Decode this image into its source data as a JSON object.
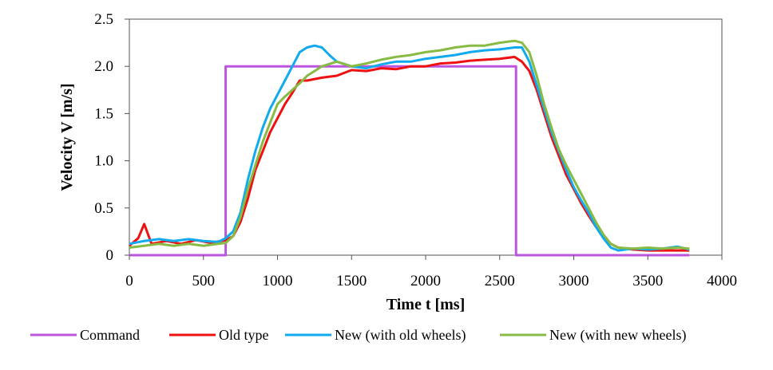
{
  "chart_data": {
    "type": "line",
    "title": "",
    "xlabel": "Time t [ms]",
    "ylabel": "Velocity V [m/s]",
    "xlim": [
      0,
      4000
    ],
    "ylim": [
      0,
      2.5
    ],
    "xticks": [
      0,
      500,
      1000,
      1500,
      2000,
      2500,
      3000,
      3500,
      4000
    ],
    "yticks": [
      0,
      0.5,
      1.0,
      1.5,
      2.0,
      2.5
    ],
    "xtick_labels": [
      "0",
      "500",
      "1000",
      "1500",
      "2000",
      "2500",
      "3000",
      "3500",
      "4000"
    ],
    "ytick_labels": [
      "0",
      "0.5",
      "1.0",
      "1.5",
      "2.0",
      "2.5"
    ],
    "grid": false,
    "legend_position": "bottom",
    "series": [
      {
        "name": "Command",
        "color": "#bb55dd",
        "x": [
          0,
          650,
          650,
          2610,
          2610,
          3780
        ],
        "y": [
          0,
          0,
          2.0,
          2.0,
          0,
          0
        ]
      },
      {
        "name": "Old type",
        "color": "#ee1111",
        "x": [
          0,
          60,
          100,
          150,
          250,
          350,
          450,
          550,
          650,
          700,
          750,
          800,
          850,
          900,
          950,
          1000,
          1050,
          1100,
          1150,
          1200,
          1300,
          1400,
          1500,
          1600,
          1700,
          1800,
          1900,
          2000,
          2100,
          2200,
          2300,
          2400,
          2500,
          2600,
          2650,
          2700,
          2750,
          2800,
          2850,
          2900,
          2950,
          3000,
          3050,
          3100,
          3150,
          3200,
          3250,
          3300,
          3400,
          3500,
          3600,
          3700,
          3780
        ],
        "y": [
          0.1,
          0.18,
          0.33,
          0.12,
          0.15,
          0.12,
          0.16,
          0.13,
          0.16,
          0.2,
          0.35,
          0.6,
          0.9,
          1.1,
          1.3,
          1.45,
          1.6,
          1.72,
          1.85,
          1.85,
          1.88,
          1.9,
          1.96,
          1.95,
          1.98,
          1.97,
          2.0,
          2.0,
          2.03,
          2.04,
          2.06,
          2.07,
          2.08,
          2.1,
          2.05,
          1.95,
          1.75,
          1.5,
          1.25,
          1.05,
          0.85,
          0.7,
          0.55,
          0.42,
          0.3,
          0.2,
          0.12,
          0.08,
          0.06,
          0.05,
          0.05,
          0.05,
          0.05
        ]
      },
      {
        "name": "New (with old wheels)",
        "color": "#11aaee",
        "x": [
          0,
          100,
          200,
          300,
          400,
          500,
          600,
          650,
          700,
          750,
          800,
          850,
          900,
          950,
          1000,
          1050,
          1100,
          1150,
          1200,
          1250,
          1300,
          1350,
          1400,
          1500,
          1600,
          1700,
          1800,
          1900,
          2000,
          2100,
          2200,
          2300,
          2400,
          2500,
          2600,
          2650,
          2700,
          2750,
          2800,
          2850,
          2900,
          2950,
          3000,
          3050,
          3100,
          3150,
          3200,
          3250,
          3300,
          3400,
          3500,
          3600,
          3700,
          3780
        ],
        "y": [
          0.12,
          0.15,
          0.17,
          0.15,
          0.17,
          0.15,
          0.14,
          0.18,
          0.25,
          0.45,
          0.8,
          1.1,
          1.35,
          1.55,
          1.7,
          1.85,
          2.0,
          2.15,
          2.2,
          2.22,
          2.2,
          2.12,
          2.05,
          2.0,
          1.98,
          2.02,
          2.05,
          2.05,
          2.08,
          2.1,
          2.12,
          2.15,
          2.17,
          2.18,
          2.2,
          2.2,
          2.05,
          1.8,
          1.55,
          1.3,
          1.1,
          0.9,
          0.72,
          0.58,
          0.45,
          0.3,
          0.18,
          0.08,
          0.05,
          0.07,
          0.06,
          0.07,
          0.09,
          0.06
        ]
      },
      {
        "name": "New (with new wheels)",
        "color": "#88bb44",
        "x": [
          0,
          100,
          200,
          300,
          400,
          500,
          600,
          650,
          700,
          750,
          800,
          850,
          900,
          950,
          1000,
          1050,
          1100,
          1150,
          1200,
          1250,
          1300,
          1400,
          1500,
          1600,
          1700,
          1800,
          1900,
          2000,
          2100,
          2200,
          2300,
          2400,
          2500,
          2600,
          2650,
          2700,
          2750,
          2800,
          2850,
          2900,
          2950,
          3000,
          3050,
          3100,
          3150,
          3200,
          3250,
          3300,
          3400,
          3500,
          3600,
          3700,
          3780
        ],
        "y": [
          0.08,
          0.1,
          0.12,
          0.1,
          0.12,
          0.1,
          0.12,
          0.13,
          0.2,
          0.4,
          0.7,
          0.95,
          1.2,
          1.4,
          1.6,
          1.68,
          1.75,
          1.82,
          1.9,
          1.95,
          2.0,
          2.05,
          2.0,
          2.03,
          2.07,
          2.1,
          2.12,
          2.15,
          2.17,
          2.2,
          2.22,
          2.22,
          2.25,
          2.27,
          2.25,
          2.15,
          1.9,
          1.6,
          1.35,
          1.12,
          0.95,
          0.8,
          0.65,
          0.5,
          0.35,
          0.22,
          0.12,
          0.08,
          0.07,
          0.08,
          0.07,
          0.08,
          0.07
        ]
      }
    ]
  }
}
